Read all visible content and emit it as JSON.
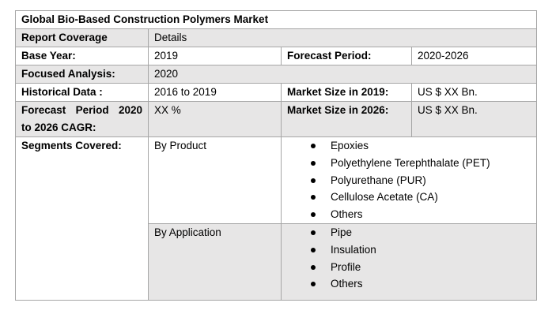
{
  "title": "Global Bio-Based Construction Polymers Market",
  "header_row": {
    "label": "Report Coverage",
    "value": "Details"
  },
  "base_year": {
    "label": "Base Year:",
    "value": "2019"
  },
  "forecast_period": {
    "label": "Forecast Period:",
    "value": "2020-2026"
  },
  "focused_analysis": {
    "label": "Focused Analysis:",
    "value": "2020"
  },
  "historical_data": {
    "label": "Historical Data :",
    "value": "2016 to 2019"
  },
  "market_size_2019": {
    "label": "Market Size in 2019:",
    "value": "US $ XX Bn."
  },
  "cagr": {
    "label_line1_words": [
      "Forecast",
      "Period",
      "2020"
    ],
    "label_line2": "to 2026 CAGR:",
    "value": "XX %"
  },
  "market_size_2026": {
    "label": "Market Size in 2026:",
    "value": "US $ XX Bn."
  },
  "segments": {
    "label": "Segments Covered:",
    "by_product": {
      "label": "By Product",
      "items": [
        "Epoxies",
        "Polyethylene Terephthalate (PET)",
        "Polyurethane (PUR)",
        "Cellulose Acetate (CA)",
        "Others"
      ]
    },
    "by_application": {
      "label": "By Application",
      "items": [
        "Pipe",
        "Insulation",
        "Profile",
        "Others"
      ]
    }
  }
}
